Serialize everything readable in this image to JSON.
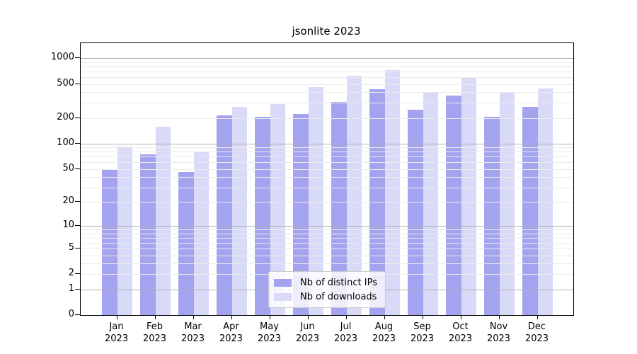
{
  "title": "jsonlite 2023",
  "chart_data": {
    "type": "bar",
    "title": "jsonlite 2023",
    "year": "2023",
    "months": [
      "Jan",
      "Feb",
      "Mar",
      "Apr",
      "May",
      "Jun",
      "Jul",
      "Aug",
      "Sep",
      "Oct",
      "Nov",
      "Dec"
    ],
    "categories": [
      "Jan 2023",
      "Feb 2023",
      "Mar 2023",
      "Apr 2023",
      "May 2023",
      "Jun 2023",
      "Jul 2023",
      "Aug 2023",
      "Sep 2023",
      "Oct 2023",
      "Nov 2023",
      "Dec 2023"
    ],
    "series": [
      {
        "name": "Nb of distinct IPs",
        "color": "#a3a3f0",
        "values": [
          49,
          75,
          46,
          213,
          206,
          223,
          307,
          438,
          250,
          366,
          208,
          270
        ]
      },
      {
        "name": "Nb of downloads",
        "color": "#d9d9f8",
        "values": [
          92,
          158,
          81,
          271,
          293,
          464,
          630,
          728,
          395,
          600,
          403,
          445
        ]
      }
    ],
    "y_axis": {
      "scale": "log10(value+1)",
      "ticks": [
        0,
        1,
        2,
        5,
        10,
        20,
        50,
        100,
        200,
        500,
        1000
      ],
      "ylim": [
        0,
        1485
      ],
      "grid": "on",
      "major_grid_values": [
        1,
        10,
        100,
        1000
      ],
      "major_grid_color": "#b0b0b0",
      "minor_grid_color": "#ebebeb"
    },
    "legend_position": "bottom-center",
    "xlabel": "",
    "ylabel": ""
  }
}
